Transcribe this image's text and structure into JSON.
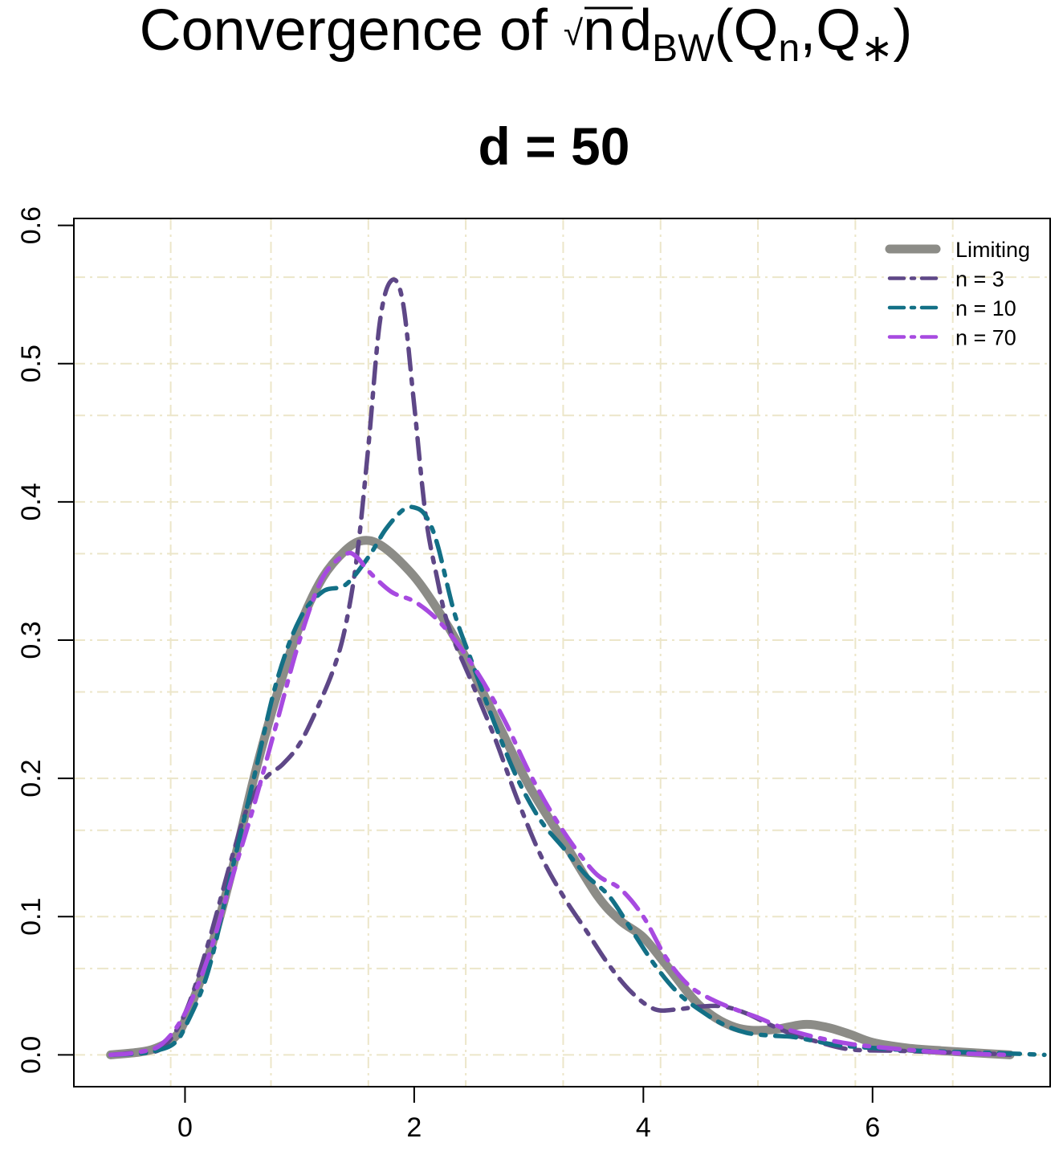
{
  "chart_data": {
    "type": "line",
    "title": {
      "prefix": "Convergence of ",
      "radical": "√",
      "radicand": "n",
      "d": "d",
      "d_sub": "BW",
      "open": "(Q",
      "q1_sub": "n",
      "comma": ",Q",
      "q2_sub": "∗",
      "close": ")"
    },
    "subtitle": "d = 50",
    "xlabel": "",
    "ylabel": "",
    "xlim": [
      -0.97,
      7.55
    ],
    "ylim": [
      -0.023,
      0.605
    ],
    "x_ticks": [
      0,
      2,
      4,
      6
    ],
    "x_tick_labels": [
      "0",
      "2",
      "4",
      "6"
    ],
    "y_ticks": [
      0.0,
      0.1,
      0.2,
      0.3,
      0.4,
      0.5,
      0.6
    ],
    "y_tick_labels": [
      "0.0",
      "0.1",
      "0.2",
      "0.3",
      "0.4",
      "0.5",
      "0.6"
    ],
    "grid": true,
    "grid_x": [
      -0.125,
      0.75,
      1.6,
      2.45,
      3.3,
      4.15,
      5.0,
      5.85,
      6.7
    ],
    "grid_y": [
      0.0,
      0.0625,
      0.1,
      0.1625,
      0.2,
      0.2625,
      0.3,
      0.3625,
      0.4,
      0.4625,
      0.5,
      0.5625
    ],
    "legend_position": "top-right",
    "series": [
      {
        "name": "Limiting",
        "color": "#8c8c87",
        "dash": "solid",
        "x": [
          -0.65,
          -0.4,
          -0.25,
          -0.1,
          0.0,
          0.2,
          0.4,
          0.6,
          0.8,
          1.0,
          1.2,
          1.4,
          1.55,
          1.7,
          1.9,
          2.1,
          2.4,
          2.7,
          3.0,
          3.3,
          3.6,
          3.8,
          4.0,
          4.2,
          4.5,
          4.8,
          5.1,
          5.4,
          5.6,
          5.8,
          6.0,
          6.3,
          6.6,
          7.0,
          7.2
        ],
        "y": [
          0.0,
          0.002,
          0.005,
          0.012,
          0.025,
          0.07,
          0.13,
          0.2,
          0.26,
          0.31,
          0.345,
          0.365,
          0.372,
          0.369,
          0.355,
          0.335,
          0.295,
          0.245,
          0.195,
          0.155,
          0.115,
          0.097,
          0.085,
          0.065,
          0.035,
          0.02,
          0.018,
          0.022,
          0.02,
          0.015,
          0.009,
          0.005,
          0.003,
          0.001,
          0.0
        ]
      },
      {
        "name": "n = 3",
        "color": "#5e4787",
        "dash": "dashdot",
        "x": [
          -0.65,
          -0.4,
          -0.2,
          0.0,
          0.2,
          0.4,
          0.55,
          0.7,
          0.85,
          1.0,
          1.15,
          1.3,
          1.4,
          1.5,
          1.6,
          1.7,
          1.8,
          1.9,
          2.0,
          2.1,
          2.2,
          2.3,
          2.5,
          2.7,
          2.9,
          3.1,
          3.3,
          3.5,
          3.7,
          3.9,
          4.1,
          4.3,
          4.5,
          4.7,
          4.9,
          5.1,
          5.3,
          5.5,
          5.8,
          6.2,
          6.6,
          7.0,
          7.2
        ],
        "y": [
          0.0,
          0.002,
          0.005,
          0.03,
          0.08,
          0.14,
          0.18,
          0.2,
          0.21,
          0.225,
          0.25,
          0.28,
          0.31,
          0.36,
          0.44,
          0.53,
          0.56,
          0.545,
          0.47,
          0.39,
          0.345,
          0.31,
          0.27,
          0.23,
          0.185,
          0.145,
          0.115,
          0.09,
          0.065,
          0.045,
          0.033,
          0.033,
          0.035,
          0.035,
          0.03,
          0.022,
          0.015,
          0.01,
          0.004,
          0.003,
          0.002,
          0.001,
          0.0
        ]
      },
      {
        "name": "n = 10",
        "color": "#137086",
        "dash": "dashdot",
        "x": [
          -0.65,
          -0.4,
          -0.25,
          -0.1,
          0.0,
          0.2,
          0.4,
          0.6,
          0.8,
          1.0,
          1.2,
          1.4,
          1.6,
          1.75,
          1.9,
          2.0,
          2.1,
          2.2,
          2.35,
          2.5,
          2.7,
          2.9,
          3.1,
          3.3,
          3.5,
          3.7,
          3.9,
          4.1,
          4.3,
          4.5,
          4.7,
          4.9,
          5.1,
          5.3,
          5.5,
          5.7,
          6.0,
          6.4,
          6.8,
          7.2,
          7.5
        ],
        "y": [
          0.0,
          0.001,
          0.003,
          0.008,
          0.02,
          0.06,
          0.13,
          0.2,
          0.27,
          0.315,
          0.335,
          0.34,
          0.36,
          0.38,
          0.394,
          0.396,
          0.39,
          0.37,
          0.32,
          0.285,
          0.24,
          0.2,
          0.17,
          0.15,
          0.13,
          0.115,
          0.09,
          0.065,
          0.045,
          0.032,
          0.022,
          0.016,
          0.014,
          0.013,
          0.01,
          0.007,
          0.005,
          0.003,
          0.002,
          0.001,
          0.0
        ]
      },
      {
        "name": "n = 70",
        "color": "#a74ae0",
        "dash": "dashdot",
        "x": [
          -0.65,
          -0.4,
          -0.2,
          0.0,
          0.2,
          0.4,
          0.6,
          0.8,
          1.0,
          1.2,
          1.4,
          1.5,
          1.6,
          1.8,
          2.0,
          2.2,
          2.4,
          2.6,
          2.8,
          3.0,
          3.2,
          3.4,
          3.6,
          3.8,
          4.0,
          4.2,
          4.4,
          4.6,
          4.8,
          5.0,
          5.2,
          5.4,
          5.6,
          5.8,
          6.0,
          6.4,
          6.8,
          7.2
        ],
        "y": [
          0.0,
          0.002,
          0.008,
          0.03,
          0.07,
          0.125,
          0.18,
          0.24,
          0.3,
          0.345,
          0.362,
          0.36,
          0.35,
          0.335,
          0.328,
          0.315,
          0.295,
          0.27,
          0.24,
          0.205,
          0.175,
          0.15,
          0.13,
          0.12,
          0.1,
          0.07,
          0.05,
          0.04,
          0.033,
          0.027,
          0.02,
          0.015,
          0.011,
          0.008,
          0.006,
          0.003,
          0.001,
          0.0
        ]
      }
    ]
  }
}
